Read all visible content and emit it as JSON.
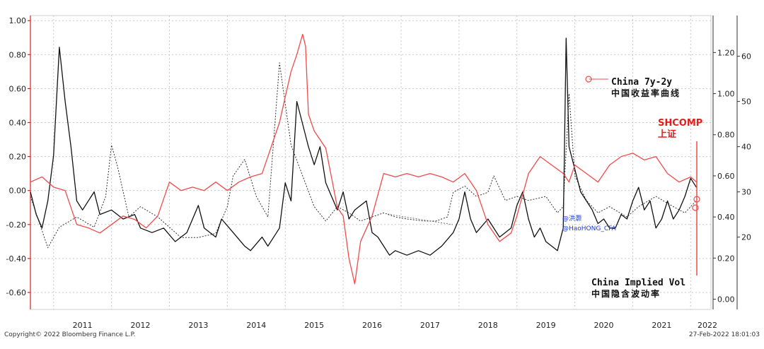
{
  "chart_data": {
    "type": "line",
    "years": [
      "2011",
      "2012",
      "2013",
      "2014",
      "2015",
      "2016",
      "2017",
      "2018",
      "2019",
      "2020",
      "2021",
      "2022"
    ],
    "left_axis": {
      "ticks": [
        "1.00",
        "0.80",
        "0.60",
        "0.40",
        "0.20",
        "0.00",
        "-0.20",
        "-0.40",
        "-0.60"
      ],
      "ylim": [
        -0.7,
        1.03
      ],
      "color": "#e02020"
    },
    "inner_right_axis": {
      "ticks": [
        "1.20",
        "1.00",
        "0.80",
        "0.60",
        "0.40",
        "0.20",
        "0.00"
      ],
      "ylim": [
        -0.05,
        1.38
      ]
    },
    "outer_right_axis": {
      "ticks": [
        "60",
        "50",
        "40",
        "30",
        "20"
      ],
      "ylim": [
        4,
        69
      ]
    },
    "series": [
      {
        "name": "China 7y-2y",
        "name_cn": "中国收益率曲线",
        "axis": "inner_right",
        "style": "dotted",
        "color": "#333333",
        "points": [
          [
            2010.6,
            0.5
          ],
          [
            2010.9,
            0.25
          ],
          [
            2011.1,
            0.35
          ],
          [
            2011.4,
            0.4
          ],
          [
            2011.7,
            0.35
          ],
          [
            2011.9,
            0.5
          ],
          [
            2012.0,
            0.75
          ],
          [
            2012.1,
            0.65
          ],
          [
            2012.3,
            0.4
          ],
          [
            2012.5,
            0.45
          ],
          [
            2012.8,
            0.4
          ],
          [
            2013.0,
            0.35
          ],
          [
            2013.2,
            0.3
          ],
          [
            2013.5,
            0.3
          ],
          [
            2013.8,
            0.32
          ],
          [
            2014.0,
            0.45
          ],
          [
            2014.1,
            0.6
          ],
          [
            2014.3,
            0.68
          ],
          [
            2014.5,
            0.5
          ],
          [
            2014.7,
            0.4
          ],
          [
            2014.9,
            1.15
          ],
          [
            2015.1,
            0.75
          ],
          [
            2015.3,
            0.6
          ],
          [
            2015.5,
            0.45
          ],
          [
            2015.7,
            0.38
          ],
          [
            2015.9,
            0.45
          ],
          [
            2016.1,
            0.42
          ],
          [
            2016.3,
            0.38
          ],
          [
            2016.5,
            0.4
          ],
          [
            2016.7,
            0.42
          ],
          [
            2016.9,
            0.4
          ],
          [
            2017.1,
            0.39
          ],
          [
            2017.4,
            0.38
          ],
          [
            2017.6,
            0.38
          ],
          [
            2017.8,
            0.4
          ],
          [
            2017.9,
            0.52
          ],
          [
            2018.1,
            0.55
          ],
          [
            2018.3,
            0.5
          ],
          [
            2018.5,
            0.52
          ],
          [
            2018.6,
            0.6
          ],
          [
            2018.8,
            0.48
          ],
          [
            2019.0,
            0.5
          ],
          [
            2019.2,
            0.48
          ],
          [
            2019.5,
            0.5
          ],
          [
            2019.7,
            0.42
          ],
          [
            2019.8,
            0.45
          ],
          [
            2019.9,
            1.0
          ],
          [
            2020.0,
            0.6
          ],
          [
            2020.2,
            0.48
          ],
          [
            2020.4,
            0.42
          ],
          [
            2020.6,
            0.45
          ],
          [
            2020.9,
            0.4
          ],
          [
            2021.1,
            0.45
          ],
          [
            2021.4,
            0.5
          ],
          [
            2021.7,
            0.45
          ],
          [
            2021.9,
            0.42
          ],
          [
            2022.1,
            0.48
          ]
        ]
      },
      {
        "name": "China Implied Vol",
        "name_cn": "中国隐含波动率",
        "axis": "outer_right",
        "style": "solid",
        "color": "#111111",
        "points": [
          [
            2010.6,
            30
          ],
          [
            2010.7,
            25
          ],
          [
            2010.8,
            22
          ],
          [
            2010.9,
            28
          ],
          [
            2011.0,
            38
          ],
          [
            2011.1,
            62
          ],
          [
            2011.2,
            50
          ],
          [
            2011.3,
            40
          ],
          [
            2011.4,
            28
          ],
          [
            2011.5,
            26
          ],
          [
            2011.7,
            30
          ],
          [
            2011.8,
            25
          ],
          [
            2012.0,
            26
          ],
          [
            2012.2,
            24
          ],
          [
            2012.4,
            25
          ],
          [
            2012.5,
            22
          ],
          [
            2012.7,
            21
          ],
          [
            2012.9,
            22
          ],
          [
            2013.1,
            19
          ],
          [
            2013.3,
            21
          ],
          [
            2013.5,
            27
          ],
          [
            2013.6,
            22
          ],
          [
            2013.8,
            20
          ],
          [
            2013.9,
            24
          ],
          [
            2014.1,
            21
          ],
          [
            2014.3,
            18
          ],
          [
            2014.4,
            17
          ],
          [
            2014.6,
            20
          ],
          [
            2014.7,
            18
          ],
          [
            2014.9,
            22
          ],
          [
            2015.0,
            32
          ],
          [
            2015.1,
            28
          ],
          [
            2015.2,
            50
          ],
          [
            2015.3,
            45
          ],
          [
            2015.4,
            40
          ],
          [
            2015.5,
            36
          ],
          [
            2015.6,
            40
          ],
          [
            2015.7,
            32
          ],
          [
            2015.9,
            26
          ],
          [
            2016.0,
            30
          ],
          [
            2016.1,
            24
          ],
          [
            2016.2,
            26
          ],
          [
            2016.4,
            28
          ],
          [
            2016.5,
            21
          ],
          [
            2016.6,
            20
          ],
          [
            2016.7,
            18
          ],
          [
            2016.8,
            16
          ],
          [
            2016.9,
            17
          ],
          [
            2017.1,
            16
          ],
          [
            2017.3,
            17
          ],
          [
            2017.5,
            16
          ],
          [
            2017.7,
            18
          ],
          [
            2017.9,
            21
          ],
          [
            2018.0,
            24
          ],
          [
            2018.1,
            30
          ],
          [
            2018.2,
            24
          ],
          [
            2018.3,
            21
          ],
          [
            2018.5,
            24
          ],
          [
            2018.7,
            20
          ],
          [
            2018.9,
            22
          ],
          [
            2019.0,
            27
          ],
          [
            2019.1,
            30
          ],
          [
            2019.2,
            24
          ],
          [
            2019.3,
            20
          ],
          [
            2019.4,
            22
          ],
          [
            2019.5,
            19
          ],
          [
            2019.6,
            18
          ],
          [
            2019.7,
            17
          ],
          [
            2019.8,
            22
          ],
          [
            2019.85,
            64
          ],
          [
            2019.9,
            40
          ],
          [
            2020.0,
            35
          ],
          [
            2020.1,
            30
          ],
          [
            2020.2,
            28
          ],
          [
            2020.3,
            26
          ],
          [
            2020.4,
            23
          ],
          [
            2020.5,
            24
          ],
          [
            2020.6,
            22
          ],
          [
            2020.7,
            22
          ],
          [
            2020.8,
            25
          ],
          [
            2020.9,
            24
          ],
          [
            2021.0,
            28
          ],
          [
            2021.1,
            31
          ],
          [
            2021.2,
            26
          ],
          [
            2021.3,
            28
          ],
          [
            2021.4,
            22
          ],
          [
            2021.5,
            24
          ],
          [
            2021.6,
            28
          ],
          [
            2021.7,
            24
          ],
          [
            2021.8,
            26
          ],
          [
            2021.9,
            29
          ],
          [
            2022.0,
            33
          ],
          [
            2022.1,
            31
          ]
        ]
      },
      {
        "name": "SHCOMP",
        "name_cn": "上证",
        "axis": "left",
        "style": "solid",
        "color": "#f04b4b",
        "points": [
          [
            2010.6,
            0.05
          ],
          [
            2010.8,
            0.08
          ],
          [
            2011.0,
            0.02
          ],
          [
            2011.2,
            0.0
          ],
          [
            2011.4,
            -0.2
          ],
          [
            2011.6,
            -0.22
          ],
          [
            2011.8,
            -0.25
          ],
          [
            2012.0,
            -0.2
          ],
          [
            2012.2,
            -0.15
          ],
          [
            2012.4,
            -0.17
          ],
          [
            2012.6,
            -0.22
          ],
          [
            2012.8,
            -0.15
          ],
          [
            2013.0,
            0.05
          ],
          [
            2013.2,
            0.0
          ],
          [
            2013.4,
            0.02
          ],
          [
            2013.6,
            0.0
          ],
          [
            2013.8,
            0.05
          ],
          [
            2014.0,
            0.0
          ],
          [
            2014.2,
            0.05
          ],
          [
            2014.4,
            0.08
          ],
          [
            2014.6,
            0.1
          ],
          [
            2014.8,
            0.3
          ],
          [
            2014.9,
            0.4
          ],
          [
            2015.0,
            0.55
          ],
          [
            2015.1,
            0.7
          ],
          [
            2015.2,
            0.8
          ],
          [
            2015.3,
            0.92
          ],
          [
            2015.35,
            0.85
          ],
          [
            2015.4,
            0.45
          ],
          [
            2015.5,
            0.35
          ],
          [
            2015.7,
            0.25
          ],
          [
            2015.9,
            -0.1
          ],
          [
            2016.0,
            -0.15
          ],
          [
            2016.1,
            -0.4
          ],
          [
            2016.2,
            -0.55
          ],
          [
            2016.3,
            -0.3
          ],
          [
            2016.5,
            -0.15
          ],
          [
            2016.7,
            0.1
          ],
          [
            2016.9,
            0.08
          ],
          [
            2017.1,
            0.1
          ],
          [
            2017.3,
            0.08
          ],
          [
            2017.5,
            0.1
          ],
          [
            2017.7,
            0.08
          ],
          [
            2017.9,
            0.05
          ],
          [
            2018.1,
            0.1
          ],
          [
            2018.3,
            0.0
          ],
          [
            2018.5,
            -0.2
          ],
          [
            2018.7,
            -0.3
          ],
          [
            2018.9,
            -0.25
          ],
          [
            2019.0,
            -0.15
          ],
          [
            2019.2,
            0.1
          ],
          [
            2019.4,
            0.2
          ],
          [
            2019.6,
            0.15
          ],
          [
            2019.8,
            0.1
          ],
          [
            2019.9,
            0.05
          ],
          [
            2020.0,
            0.15
          ],
          [
            2020.2,
            0.1
          ],
          [
            2020.4,
            0.05
          ],
          [
            2020.6,
            0.15
          ],
          [
            2020.8,
            0.2
          ],
          [
            2021.0,
            0.22
          ],
          [
            2021.2,
            0.18
          ],
          [
            2021.4,
            0.2
          ],
          [
            2021.6,
            0.1
          ],
          [
            2021.8,
            0.05
          ],
          [
            2022.0,
            0.08
          ],
          [
            2022.1,
            0.05
          ]
        ]
      }
    ],
    "grid": true,
    "legend": "inline-labels"
  },
  "labels": {
    "yield_en": "China 7y-2y",
    "yield_cn": "中国收益率曲线",
    "shcomp_en": "SHCOMP",
    "shcomp_cn": "上证",
    "vol_en": "China Implied Vol",
    "vol_cn": "中国隐含波动率",
    "watermark_1": "@洪灏",
    "watermark_2": "@HaoHONG_CFA"
  },
  "footer": {
    "copyright": "Copyright© 2022 Bloomberg Finance L.P.",
    "timestamp": "27-Feb-2022 18:01:03"
  }
}
